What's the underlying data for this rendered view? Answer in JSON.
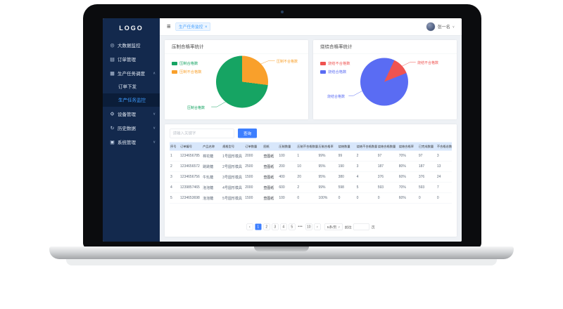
{
  "sidebar": {
    "logo": "LOGO",
    "active_item": "生产任务监控",
    "menu": [
      {
        "label": "大数据监控",
        "icon": "big-data-monitor-icon",
        "glyph": "◎"
      },
      {
        "label": "订单管理",
        "icon": "order-management-icon",
        "glyph": "▤"
      },
      {
        "label": "生产任务调度",
        "icon": "production-task-icon",
        "glyph": "▦",
        "chevron": "up",
        "children": [
          "订单下发",
          "生产任务监控"
        ]
      },
      {
        "label": "设备管理",
        "icon": "device-management-icon",
        "glyph": "⚙",
        "chevron": "down"
      },
      {
        "label": "历史数据",
        "icon": "history-data-icon",
        "glyph": "↻",
        "chevron": "down"
      },
      {
        "label": "系统管理",
        "icon": "system-management-icon",
        "glyph": "▣",
        "chevron": "down"
      }
    ]
  },
  "topbar": {
    "fold_icon": "≡",
    "tag_label": "生产任务监控",
    "tag_close": "×",
    "user_name": "张一名",
    "user_caret": "∨"
  },
  "chart_data": [
    {
      "type": "pie",
      "title": "压制合格率统计",
      "legend_position": "left",
      "legend": [
        {
          "label": "压制合格数",
          "color": "#16a463"
        },
        {
          "label": "压制不合格数",
          "color": "#f9a02b"
        }
      ],
      "slices": [
        {
          "label": "压制合格数",
          "value": 73,
          "color": "#16a463"
        },
        {
          "label": "压制不合格数",
          "value": 27,
          "color": "#f9a02b"
        }
      ]
    },
    {
      "type": "pie",
      "title": "烧结合格率统计",
      "legend_position": "left",
      "legend": [
        {
          "label": "烧结不合格数",
          "color": "#ef5350"
        },
        {
          "label": "烧结合格数",
          "color": "#5a6cf3"
        }
      ],
      "slices": [
        {
          "label": "烧结不合格数",
          "value": 12,
          "color": "#ef5350"
        },
        {
          "label": "烧结合格数",
          "value": 88,
          "color": "#5a6cf3"
        }
      ]
    }
  ],
  "search": {
    "placeholder": "请输入关键字",
    "button_label": "查询"
  },
  "table": {
    "headers": [
      "序号",
      "订单编号",
      "产品名称",
      "规格型号",
      "订单数量",
      "图纸",
      "压制数量",
      "压制不合格数量",
      "压制合格率",
      "烧结数量",
      "烧结不合格数量",
      "烧结合格数量",
      "烧结合格率",
      "已完成数量",
      "不合格总数"
    ],
    "link_cell_text": "查图纸",
    "rows": [
      [
        "1",
        "1234656785",
        "棉花糖",
        "1号圆形模具",
        "2000",
        "查图纸",
        "100",
        "1",
        "99%",
        "99",
        "2",
        "97",
        "70%",
        "97",
        "3"
      ],
      [
        "2",
        "1234656572",
        "跳跳糖",
        "2号圆形模具",
        "2500",
        "查图纸",
        "200",
        "10",
        "95%",
        "190",
        "3",
        "187",
        "80%",
        "187",
        "13"
      ],
      [
        "3",
        "1234656756",
        "牛轧糖",
        "3号圆形模具",
        "1500",
        "查图纸",
        "400",
        "20",
        "95%",
        "380",
        "4",
        "376",
        "60%",
        "376",
        "24"
      ],
      [
        "4",
        "1239857465",
        "泡泡糖",
        "4号圆形模具",
        "2000",
        "查图纸",
        "600",
        "2",
        "99%",
        "598",
        "5",
        "593",
        "70%",
        "593",
        "7"
      ],
      [
        "5",
        "1234653698",
        "泡泡糖",
        "5号圆形模具",
        "1500",
        "查图纸",
        "100",
        "0",
        "100%",
        "0",
        "0",
        "0",
        "60%",
        "0",
        "0"
      ]
    ]
  },
  "pagination": {
    "prev": "‹",
    "next": "›",
    "pages": [
      "1",
      "2",
      "3",
      "4",
      "5",
      "•••",
      "10"
    ],
    "active_page": "1",
    "page_size": "5条/页",
    "size_caret": "∨",
    "goto_label": "前往",
    "goto_value": "",
    "unit_label": "页"
  }
}
